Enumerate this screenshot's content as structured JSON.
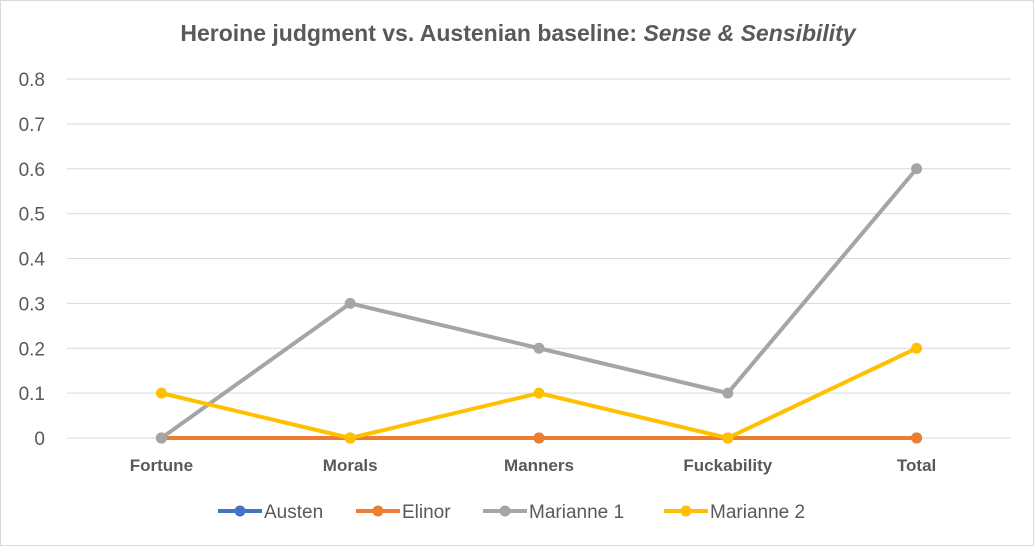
{
  "chart_data": {
    "type": "line",
    "title": "Heroine judgment vs. Austenian baseline: ",
    "title_italic": "Sense & Sensibility",
    "xlabel": "",
    "ylabel": "",
    "categories": [
      "Fortune",
      "Morals",
      "Manners",
      "Fuckability",
      "Total"
    ],
    "ylim": [
      0,
      0.8
    ],
    "yticks": [
      0,
      0.1,
      0.2,
      0.3,
      0.4,
      0.5,
      0.6,
      0.7,
      0.8
    ],
    "grid": true,
    "legend_position": "bottom",
    "series": [
      {
        "name": "Austen",
        "color": "#4472c4",
        "values": [
          0,
          0,
          0,
          0,
          0
        ]
      },
      {
        "name": "Elinor",
        "color": "#ed7d31",
        "values": [
          0,
          0,
          0,
          0,
          0
        ]
      },
      {
        "name": "Marianne 1",
        "color": "#a5a5a5",
        "values": [
          0,
          0.3,
          0.2,
          0.1,
          0.6
        ]
      },
      {
        "name": "Marianne 2",
        "color": "#ffc000",
        "values": [
          0.1,
          0,
          0.1,
          0,
          0.2
        ]
      }
    ]
  }
}
